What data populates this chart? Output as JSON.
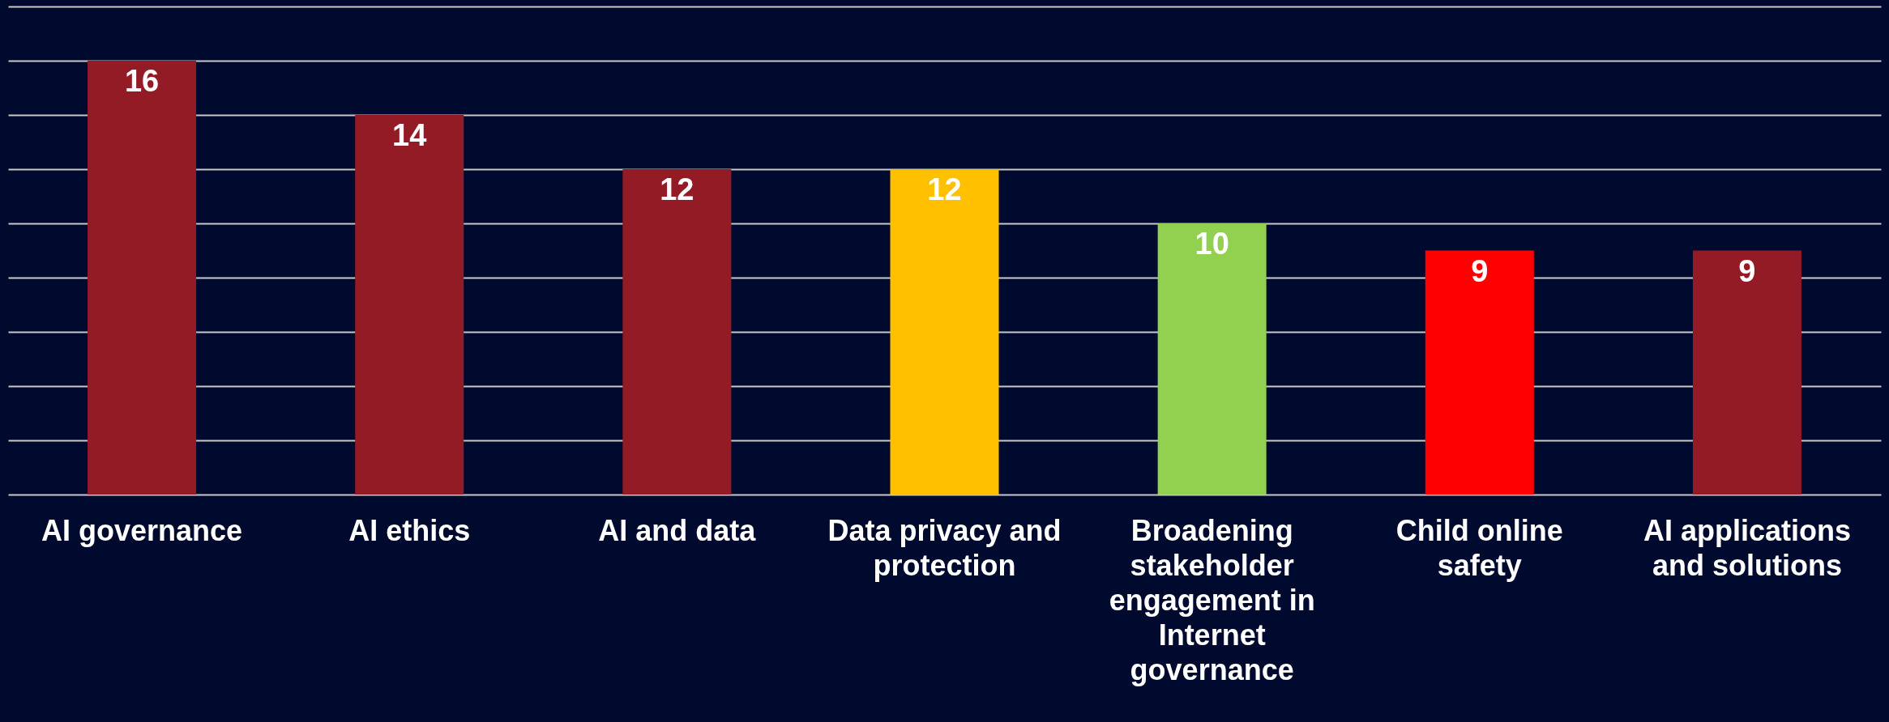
{
  "chart_data": {
    "type": "bar",
    "categories": [
      "AI governance",
      "AI ethics",
      "AI and data",
      "Data privacy and protection",
      "Broadening stakeholder engagement in Internet governance",
      "Child online safety",
      "AI applications and solutions"
    ],
    "values": [
      16,
      14,
      12,
      12,
      10,
      9,
      9
    ],
    "colors": [
      "#921b26",
      "#921b26",
      "#921b26",
      "#ffc000",
      "#92d050",
      "#ff0000",
      "#921b26"
    ],
    "ylim": [
      0,
      18
    ],
    "yticks": [
      {
        "value": 0,
        "label": null
      },
      {
        "value": 2,
        "label": null
      },
      {
        "value": 4,
        "label": null
      },
      {
        "value": 6,
        "label": null
      },
      {
        "value": 8,
        "label": null
      },
      {
        "value": 10,
        "label": null
      },
      {
        "value": 12,
        "label": null
      },
      {
        "value": 14,
        "label": null
      },
      {
        "value": 16,
        "label": null
      },
      {
        "value": 18,
        "label": null
      }
    ],
    "grid": "y",
    "data_labels": true,
    "tick_labels": "x"
  }
}
